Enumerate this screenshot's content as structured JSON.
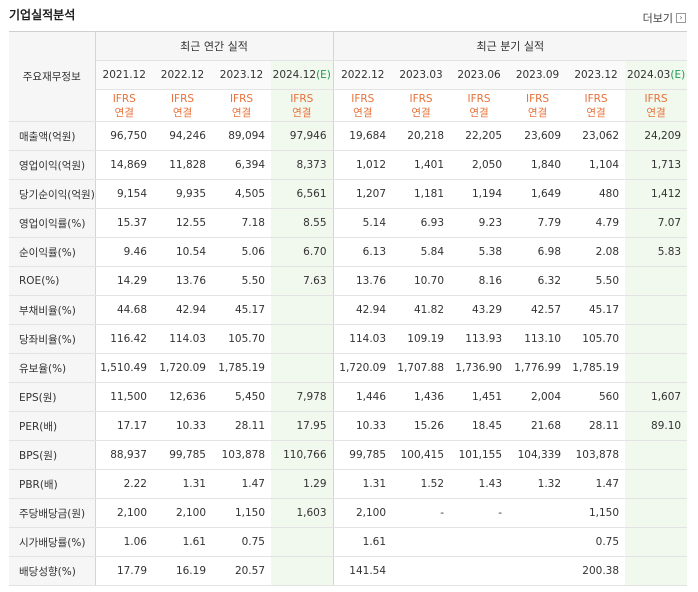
{
  "header": {
    "title": "기업실적분석",
    "more_label": "더보기"
  },
  "table": {
    "main_label": "주요재무정보",
    "group_annual": "최근 연간 실적",
    "group_quarter": "최근 분기 실적",
    "annual_periods": [
      "2021.12",
      "2022.12",
      "2023.12",
      "2024.12"
    ],
    "annual_estimate_suffix": "(E)",
    "quarter_periods": [
      "2022.12",
      "2023.03",
      "2023.06",
      "2023.09",
      "2023.12",
      "2024.03"
    ],
    "quarter_estimate_suffix": "(E)",
    "ifrs_line1": "IFRS",
    "ifrs_line2": "연결",
    "rows": [
      {
        "label": "매출액(억원)",
        "values": [
          "96,750",
          "94,246",
          "89,094",
          "97,946",
          "19,684",
          "20,218",
          "22,205",
          "23,609",
          "23,062",
          "24,209"
        ]
      },
      {
        "label": "영업이익(억원)",
        "values": [
          "14,869",
          "11,828",
          "6,394",
          "8,373",
          "1,012",
          "1,401",
          "2,050",
          "1,840",
          "1,104",
          "1,713"
        ]
      },
      {
        "label": "당기순이익(억원)",
        "values": [
          "9,154",
          "9,935",
          "4,505",
          "6,561",
          "1,207",
          "1,181",
          "1,194",
          "1,649",
          "480",
          "1,412"
        ]
      },
      {
        "label": "영업이익률(%)",
        "values": [
          "15.37",
          "12.55",
          "7.18",
          "8.55",
          "5.14",
          "6.93",
          "9.23",
          "7.79",
          "4.79",
          "7.07"
        ]
      },
      {
        "label": "순이익률(%)",
        "values": [
          "9.46",
          "10.54",
          "5.06",
          "6.70",
          "6.13",
          "5.84",
          "5.38",
          "6.98",
          "2.08",
          "5.83"
        ]
      },
      {
        "label": "ROE(%)",
        "values": [
          "14.29",
          "13.76",
          "5.50",
          "7.63",
          "13.76",
          "10.70",
          "8.16",
          "6.32",
          "5.50",
          ""
        ]
      },
      {
        "label": "부채비율(%)",
        "values": [
          "44.68",
          "42.94",
          "45.17",
          "",
          "42.94",
          "41.82",
          "43.29",
          "42.57",
          "45.17",
          ""
        ]
      },
      {
        "label": "당좌비율(%)",
        "values": [
          "116.42",
          "114.03",
          "105.70",
          "",
          "114.03",
          "109.19",
          "113.93",
          "113.10",
          "105.70",
          ""
        ]
      },
      {
        "label": "유보율(%)",
        "values": [
          "1,510.49",
          "1,720.09",
          "1,785.19",
          "",
          "1,720.09",
          "1,707.88",
          "1,736.90",
          "1,776.99",
          "1,785.19",
          ""
        ]
      },
      {
        "label": "EPS(원)",
        "values": [
          "11,500",
          "12,636",
          "5,450",
          "7,978",
          "1,446",
          "1,436",
          "1,451",
          "2,004",
          "560",
          "1,607"
        ]
      },
      {
        "label": "PER(배)",
        "values": [
          "17.17",
          "10.33",
          "28.11",
          "17.95",
          "10.33",
          "15.26",
          "18.45",
          "21.68",
          "28.11",
          "89.10"
        ]
      },
      {
        "label": "BPS(원)",
        "values": [
          "88,937",
          "99,785",
          "103,878",
          "110,766",
          "99,785",
          "100,415",
          "101,155",
          "104,339",
          "103,878",
          ""
        ]
      },
      {
        "label": "PBR(배)",
        "values": [
          "2.22",
          "1.31",
          "1.47",
          "1.29",
          "1.31",
          "1.52",
          "1.43",
          "1.32",
          "1.47",
          ""
        ]
      },
      {
        "label": "주당배당금(원)",
        "values": [
          "2,100",
          "2,100",
          "1,150",
          "1,603",
          "2,100",
          "-",
          "-",
          "",
          "1,150",
          ""
        ]
      },
      {
        "label": "시가배당률(%)",
        "values": [
          "1.06",
          "1.61",
          "0.75",
          "",
          "1.61",
          "",
          "",
          "",
          "0.75",
          ""
        ]
      },
      {
        "label": "배당성향(%)",
        "values": [
          "17.79",
          "16.19",
          "20.57",
          "",
          "141.54",
          "",
          "",
          "",
          "200.38",
          ""
        ]
      }
    ]
  }
}
